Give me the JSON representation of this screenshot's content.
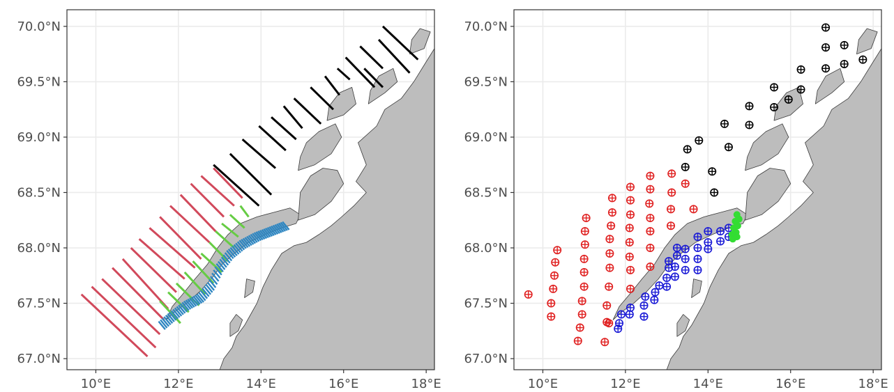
{
  "colors": {
    "background": "#ffffff",
    "grid": "#ebebeb",
    "land": "#bdbdbd",
    "coast": "#3a3a3a",
    "black": "#000000",
    "red": "#d1495b",
    "green": "#66cc44",
    "blue": "#2e86c1",
    "station_red": "#e02020",
    "station_blue": "#1a1ad6",
    "station_black": "#000000",
    "station_green": "#33dd33"
  },
  "chart_data": [
    {
      "type": "map-lines",
      "panel": "left",
      "xlim": [
        9.3,
        18.2
      ],
      "ylim": [
        66.9,
        70.15
      ],
      "x_ticks": [
        10,
        12,
        14,
        16,
        18
      ],
      "x_tick_labels": [
        "10°E",
        "12°E",
        "14°E",
        "16°E",
        "18°E"
      ],
      "y_ticks": [
        67.0,
        67.5,
        68.0,
        68.5,
        69.0,
        69.5,
        70.0
      ],
      "y_tick_labels": [
        "67.0°N",
        "67.5°N",
        "68.0°N",
        "68.5°N",
        "69.0°N",
        "69.5°N",
        "70.0°N"
      ],
      "grid": true,
      "series": [
        {
          "color_key": "black",
          "segments": [
            [
              [
                12.85,
                68.75
              ],
              [
                13.95,
                68.38
              ]
            ],
            [
              [
                13.25,
                68.85
              ],
              [
                14.25,
                68.48
              ]
            ],
            [
              [
                13.55,
                68.98
              ],
              [
                14.35,
                68.72
              ]
            ],
            [
              [
                13.95,
                69.1
              ],
              [
                14.6,
                68.88
              ]
            ],
            [
              [
                14.25,
                69.18
              ],
              [
                14.85,
                68.98
              ]
            ],
            [
              [
                14.55,
                69.28
              ],
              [
                15.0,
                69.08
              ]
            ],
            [
              [
                14.8,
                69.35
              ],
              [
                15.45,
                69.12
              ]
            ],
            [
              [
                15.2,
                69.45
              ],
              [
                15.75,
                69.25
              ]
            ],
            [
              [
                15.55,
                69.55
              ],
              [
                15.9,
                69.38
              ]
            ],
            [
              [
                15.85,
                69.62
              ],
              [
                16.15,
                69.52
              ]
            ],
            [
              [
                16.05,
                69.72
              ],
              [
                16.75,
                69.45
              ]
            ],
            [
              [
                16.4,
                69.82
              ],
              [
                16.95,
                69.62
              ]
            ],
            [
              [
                16.5,
                69.62
              ],
              [
                16.95,
                69.45
              ]
            ],
            [
              [
                16.85,
                69.88
              ],
              [
                17.6,
                69.58
              ]
            ],
            [
              [
                16.95,
                70.0
              ],
              [
                17.8,
                69.7
              ]
            ]
          ]
        },
        {
          "color_key": "red",
          "segments": [
            [
              [
                9.65,
                67.58
              ],
              [
                11.25,
                67.02
              ]
            ],
            [
              [
                9.9,
                67.65
              ],
              [
                11.45,
                67.1
              ]
            ],
            [
              [
                10.15,
                67.72
              ],
              [
                11.55,
                67.22
              ]
            ],
            [
              [
                10.4,
                67.82
              ],
              [
                11.65,
                67.35
              ]
            ],
            [
              [
                10.65,
                67.9
              ],
              [
                11.75,
                67.45
              ]
            ],
            [
              [
                10.85,
                68.0
              ],
              [
                11.95,
                67.6
              ]
            ],
            [
              [
                11.05,
                68.08
              ],
              [
                12.15,
                67.72
              ]
            ],
            [
              [
                11.3,
                68.18
              ],
              [
                12.4,
                67.82
              ]
            ],
            [
              [
                11.55,
                68.28
              ],
              [
                12.55,
                67.9
              ]
            ],
            [
              [
                11.8,
                68.38
              ],
              [
                12.75,
                68.05
              ]
            ],
            [
              [
                12.05,
                68.48
              ],
              [
                12.9,
                68.15
              ]
            ],
            [
              [
                12.3,
                68.58
              ],
              [
                13.1,
                68.28
              ]
            ],
            [
              [
                12.55,
                68.65
              ],
              [
                13.35,
                68.38
              ]
            ],
            [
              [
                12.85,
                68.72
              ],
              [
                13.55,
                68.45
              ]
            ]
          ]
        },
        {
          "color_key": "green",
          "segments": [
            [
              [
                11.55,
                67.52
              ],
              [
                12.05,
                67.32
              ]
            ],
            [
              [
                11.75,
                67.6
              ],
              [
                12.25,
                67.42
              ]
            ],
            [
              [
                11.95,
                67.68
              ],
              [
                12.5,
                67.48
              ]
            ],
            [
              [
                12.15,
                67.78
              ],
              [
                12.65,
                67.58
              ]
            ],
            [
              [
                12.35,
                67.88
              ],
              [
                12.85,
                67.68
              ]
            ],
            [
              [
                12.55,
                67.95
              ],
              [
                13.05,
                67.78
              ]
            ],
            [
              [
                12.75,
                68.05
              ],
              [
                13.2,
                67.88
              ]
            ],
            [
              [
                12.9,
                68.15
              ],
              [
                13.35,
                68.0
              ]
            ],
            [
              [
                13.05,
                68.22
              ],
              [
                13.45,
                68.1
              ]
            ],
            [
              [
                13.25,
                68.3
              ],
              [
                13.6,
                68.18
              ]
            ],
            [
              [
                13.5,
                68.38
              ],
              [
                13.7,
                68.28
              ]
            ]
          ]
        },
        {
          "color_key": "blue",
          "band": {
            "points": [
              [
                11.6,
                67.3
              ],
              [
                11.85,
                67.38
              ],
              [
                12.2,
                67.48
              ],
              [
                12.55,
                67.55
              ],
              [
                12.8,
                67.66
              ],
              [
                13.0,
                67.82
              ],
              [
                13.25,
                67.94
              ],
              [
                13.55,
                68.03
              ],
              [
                13.9,
                68.1
              ],
              [
                14.25,
                68.15
              ],
              [
                14.6,
                68.2
              ]
            ],
            "hatch_count": 70,
            "half_width": 0.08
          }
        }
      ]
    },
    {
      "type": "scatter",
      "panel": "right",
      "xlim": [
        9.3,
        18.2
      ],
      "ylim": [
        66.9,
        70.15
      ],
      "x_ticks": [
        10,
        12,
        14,
        16,
        18
      ],
      "x_tick_labels": [
        "10°E",
        "12°E",
        "14°E",
        "16°E",
        "18°E"
      ],
      "y_ticks": [
        67.0,
        67.5,
        68.0,
        68.5,
        69.0,
        69.5,
        70.0
      ],
      "y_tick_labels": [
        "67.0°N",
        "67.5°N",
        "68.0°N",
        "68.5°N",
        "69.0°N",
        "69.5°N",
        "70.0°N"
      ],
      "grid": true,
      "marker": "circle-plus",
      "series": [
        {
          "color_key": "station_red",
          "points": [
            [
              9.65,
              67.58
            ],
            [
              10.2,
              67.38
            ],
            [
              10.2,
              67.5
            ],
            [
              10.25,
              67.63
            ],
            [
              10.28,
              67.75
            ],
            [
              10.3,
              67.87
            ],
            [
              10.35,
              67.98
            ],
            [
              10.85,
              67.16
            ],
            [
              10.9,
              67.28
            ],
            [
              10.95,
              67.4
            ],
            [
              10.95,
              67.52
            ],
            [
              11.0,
              67.65
            ],
            [
              11.0,
              67.78
            ],
            [
              11.0,
              67.9
            ],
            [
              11.02,
              68.03
            ],
            [
              11.02,
              68.15
            ],
            [
              11.05,
              68.27
            ],
            [
              11.5,
              67.15
            ],
            [
              11.55,
              67.33
            ],
            [
              11.55,
              67.48
            ],
            [
              11.6,
              67.65
            ],
            [
              11.62,
              67.82
            ],
            [
              11.62,
              67.95
            ],
            [
              11.62,
              68.08
            ],
            [
              11.65,
              68.2
            ],
            [
              11.68,
              68.32
            ],
            [
              11.68,
              68.45
            ],
            [
              11.6,
              67.32
            ],
            [
              12.12,
              67.63
            ],
            [
              12.12,
              67.8
            ],
            [
              12.1,
              67.92
            ],
            [
              12.1,
              68.05
            ],
            [
              12.1,
              68.18
            ],
            [
              12.12,
              68.3
            ],
            [
              12.12,
              68.43
            ],
            [
              12.12,
              68.55
            ],
            [
              12.6,
              67.83
            ],
            [
              12.6,
              68.0
            ],
            [
              12.6,
              68.15
            ],
            [
              12.6,
              68.27
            ],
            [
              12.58,
              68.4
            ],
            [
              12.6,
              68.53
            ],
            [
              12.6,
              68.65
            ],
            [
              13.1,
              68.2
            ],
            [
              13.1,
              68.35
            ],
            [
              13.12,
              68.5
            ],
            [
              13.12,
              68.67
            ],
            [
              13.45,
              68.58
            ],
            [
              13.65,
              68.35
            ]
          ]
        },
        {
          "color_key": "station_blue",
          "points": [
            [
              11.82,
              67.27
            ],
            [
              11.85,
              67.32
            ],
            [
              11.9,
              67.4
            ],
            [
              12.1,
              67.4
            ],
            [
              12.12,
              67.46
            ],
            [
              12.45,
              67.38
            ],
            [
              12.45,
              67.48
            ],
            [
              12.48,
              67.56
            ],
            [
              12.7,
              67.53
            ],
            [
              12.72,
              67.6
            ],
            [
              12.82,
              67.66
            ],
            [
              13.0,
              67.65
            ],
            [
              13.0,
              67.73
            ],
            [
              13.05,
              67.82
            ],
            [
              13.05,
              67.88
            ],
            [
              13.2,
              67.74
            ],
            [
              13.2,
              67.83
            ],
            [
              13.25,
              67.93
            ],
            [
              13.25,
              68.0
            ],
            [
              13.45,
              67.8
            ],
            [
              13.45,
              67.9
            ],
            [
              13.45,
              67.99
            ],
            [
              13.75,
              67.8
            ],
            [
              13.75,
              67.9
            ],
            [
              13.75,
              68.0
            ],
            [
              13.75,
              68.1
            ],
            [
              14.0,
              67.99
            ],
            [
              14.0,
              68.05
            ],
            [
              14.0,
              68.15
            ],
            [
              14.3,
              68.06
            ],
            [
              14.3,
              68.15
            ],
            [
              14.5,
              68.1
            ],
            [
              14.5,
              68.18
            ]
          ]
        },
        {
          "color_key": "station_black",
          "points": [
            [
              13.45,
              68.73
            ],
            [
              13.5,
              68.89
            ],
            [
              13.78,
              68.97
            ],
            [
              14.1,
              68.69
            ],
            [
              14.15,
              68.5
            ],
            [
              14.4,
              69.12
            ],
            [
              14.5,
              68.91
            ],
            [
              15.0,
              69.28
            ],
            [
              15.0,
              69.11
            ],
            [
              15.6,
              69.45
            ],
            [
              15.6,
              69.27
            ],
            [
              15.95,
              69.34
            ],
            [
              16.25,
              69.61
            ],
            [
              16.25,
              69.43
            ],
            [
              16.85,
              69.99
            ],
            [
              16.85,
              69.81
            ],
            [
              16.85,
              69.62
            ],
            [
              17.3,
              69.83
            ],
            [
              17.3,
              69.66
            ],
            [
              17.75,
              69.7
            ]
          ]
        },
        {
          "color_key": "station_green",
          "cluster": [
            [
              14.58,
              68.12
            ],
            [
              14.62,
              68.18
            ],
            [
              14.66,
              68.24
            ],
            [
              14.7,
              68.3
            ],
            [
              14.72,
              68.2
            ],
            [
              14.68,
              68.14
            ],
            [
              14.75,
              68.26
            ],
            [
              14.6,
              68.08
            ],
            [
              14.7,
              68.1
            ]
          ]
        }
      ]
    }
  ]
}
